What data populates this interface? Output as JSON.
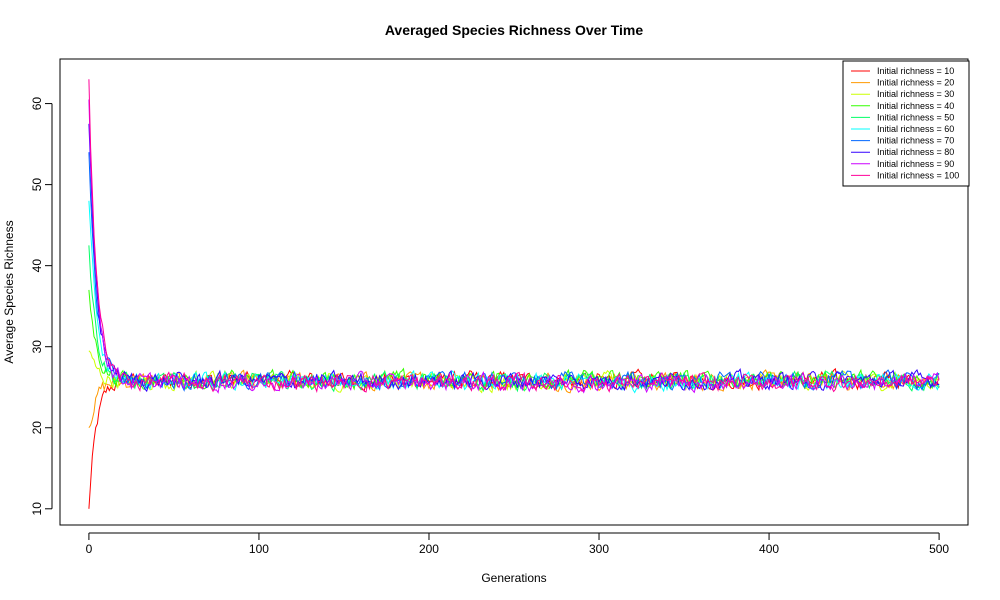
{
  "chart_data": {
    "type": "line",
    "title": "Averaged Species Richness Over Time",
    "xlabel": "Generations",
    "ylabel": "Average Species Richness",
    "xlim": [
      -17,
      517
    ],
    "ylim": [
      8,
      65.5
    ],
    "xticks": [
      0,
      100,
      200,
      300,
      400,
      500
    ],
    "yticks": [
      10,
      20,
      30,
      40,
      50,
      60
    ],
    "legend_position": "top-right",
    "grid": false,
    "generations": 500,
    "equilibrium": 25.8,
    "series": [
      {
        "name": "Initial richness = 10",
        "initial": 10,
        "color": "#FF0000"
      },
      {
        "name": "Initial richness = 20",
        "initial": 20,
        "color": "#FF9900"
      },
      {
        "name": "Initial richness = 30",
        "initial": 30,
        "color": "#CCFF00"
      },
      {
        "name": "Initial richness = 40",
        "initial": 40,
        "color": "#33FF00"
      },
      {
        "name": "Initial richness = 50",
        "initial": 50,
        "color": "#00FF66"
      },
      {
        "name": "Initial richness = 60",
        "initial": 60,
        "color": "#00FFFF"
      },
      {
        "name": "Initial richness = 70",
        "initial": 70,
        "color": "#0066FF"
      },
      {
        "name": "Initial richness = 80",
        "initial": 80,
        "color": "#3300FF"
      },
      {
        "name": "Initial richness = 90",
        "initial": 90,
        "color": "#CC00FF"
      },
      {
        "name": "Initial richness = 100",
        "initial": 100,
        "color": "#FF0099"
      }
    ]
  }
}
